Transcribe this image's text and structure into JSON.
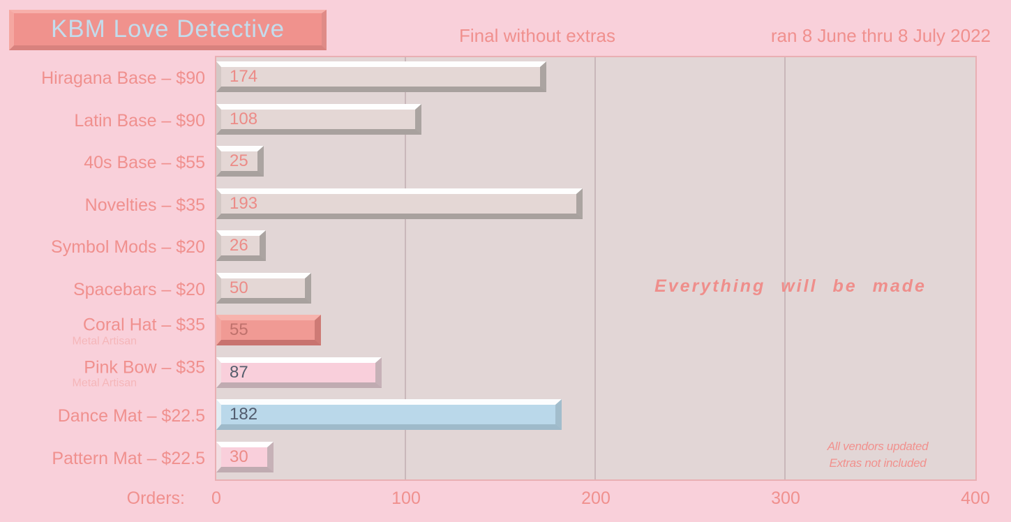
{
  "header": {
    "title": "KBM Love Detective",
    "subtitle": "Final without extras",
    "date_range": "ran 8 June thru 8 July 2022"
  },
  "chart_data": {
    "type": "bar",
    "orientation": "horizontal",
    "title": "KBM Love Detective",
    "subtitle": "Final without extras",
    "date_range": "ran 8 June thru 8 July 2022",
    "xlabel": "Orders:",
    "xlim": [
      0,
      400
    ],
    "xticks": [
      0,
      100,
      200,
      300,
      400
    ],
    "gridlines": [
      100,
      200,
      300
    ],
    "legend": "none",
    "annotation": "Everything will be made",
    "notes": [
      "All vendors updated",
      "Extras not included"
    ],
    "categories": [
      "Hiragana Base – $90",
      "Latin Base – $90",
      "40s Base – $55",
      "Novelties – $35",
      "Symbol Mods – $20",
      "Spacebars – $20",
      "Coral Hat – $35",
      "Pink Bow – $35",
      "Dance Mat – $22.5",
      "Pattern Mat – $22.5"
    ],
    "values": [
      174,
      108,
      25,
      193,
      26,
      50,
      55,
      87,
      182,
      30
    ],
    "bars": [
      {
        "label": "Hiragana Base – $90",
        "sublabel": "",
        "value": 174,
        "style": "neutral"
      },
      {
        "label": "Latin Base – $90",
        "sublabel": "",
        "value": 108,
        "style": "neutral"
      },
      {
        "label": "40s Base – $55",
        "sublabel": "",
        "value": 25,
        "style": "neutral"
      },
      {
        "label": "Novelties – $35",
        "sublabel": "",
        "value": 193,
        "style": "neutral"
      },
      {
        "label": "Symbol Mods – $20",
        "sublabel": "",
        "value": 26,
        "style": "neutral"
      },
      {
        "label": "Spacebars – $20",
        "sublabel": "",
        "value": 50,
        "style": "neutral"
      },
      {
        "label": "Coral Hat – $35",
        "sublabel": "Metal Artisan",
        "value": 55,
        "style": "coral"
      },
      {
        "label": "Pink Bow – $35",
        "sublabel": "Metal Artisan",
        "value": 87,
        "style": "pink"
      },
      {
        "label": "Dance Mat – $22.5",
        "sublabel": "",
        "value": 182,
        "style": "blue"
      },
      {
        "label": "Pattern Mat – $22.5",
        "sublabel": "",
        "value": 30,
        "style": "pinkLight"
      }
    ]
  },
  "colors": {
    "page_bg": "#F9D0DA",
    "plot_bg": "#E2D6D6",
    "plot_border": "#E9AFB3",
    "gridline": "#C9B7BA",
    "banner_bg": "#F0928D",
    "banner_text": "#C3DCEC",
    "heading_text": "#F0908E",
    "sublabel_text": "#F5B6B9",
    "tick_text": "#F0908E",
    "annotation_text": "#EF8E8B",
    "notes_text": "#F1918E"
  },
  "bar_styles": {
    "neutral": {
      "fill": "#E4D7D5",
      "top": "#FEFEFE",
      "left": "#D3C8C5",
      "right": "#ABA4A1",
      "bottom": "#A8A19E",
      "text": "#EC8B87"
    },
    "coral": {
      "fill": "#F09A94",
      "top": "#F7B3AD",
      "left": "#F3A8A2",
      "right": "#CE7A75",
      "bottom": "#C8736F",
      "text": "#BF716C"
    },
    "pink": {
      "fill": "#F9CFDB",
      "top": "#FFFFFF",
      "left": "#F2DEE2",
      "right": "#C6B1B7",
      "bottom": "#C0ABB1",
      "text": "#555D6C"
    },
    "blue": {
      "fill": "#BAD8EA",
      "top": "#FCFDFE",
      "left": "#E2EDF3",
      "right": "#A2BDCC",
      "bottom": "#9EBACA",
      "text": "#525C6E"
    },
    "pinkLight": {
      "fill": "#F9CFDB",
      "top": "#FFFFFF",
      "left": "#F2DEE2",
      "right": "#C6B1B7",
      "bottom": "#C0ABB1",
      "text": "#EC8B87"
    }
  }
}
